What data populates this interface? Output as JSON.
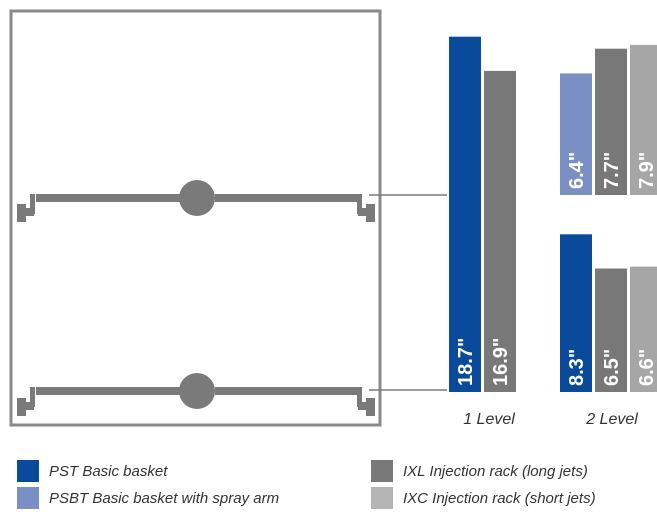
{
  "colors": {
    "frame": "#8a8a8a",
    "rack": "#7a7a7a",
    "leader": "#7a7a7a",
    "bar_text": "#ffffff",
    "axis_text": "#333333"
  },
  "chart_data": {
    "type": "bar",
    "categories": [
      "1 Level",
      "2 Level"
    ],
    "value_unit": "\"",
    "series": [
      {
        "name": "PST Basic basket",
        "color": "#0a4a9a"
      },
      {
        "name": "PSBT Basic basket with spray arm",
        "color": "#7a8fc4"
      },
      {
        "name": "IXL Injection rack (long jets)",
        "color": "#787878"
      },
      {
        "name": "IXC Injection rack (short jets)",
        "color": "#a6a6a6"
      }
    ],
    "groups": [
      {
        "category": "1 Level",
        "bars": [
          {
            "series": "PST Basic basket",
            "value": 18.7,
            "label": "18.7\""
          },
          {
            "series": "IXL Injection rack (long jets)",
            "value": 16.9,
            "label": "16.9\""
          }
        ]
      },
      {
        "category": "2 Level",
        "tiers": [
          {
            "tier": "upper",
            "bars": [
              {
                "series": "PSBT Basic basket with spray arm",
                "value": 6.4,
                "label": "6.4\""
              },
              {
                "series": "IXL Injection rack (long jets)",
                "value": 7.7,
                "label": "7.7\""
              },
              {
                "series": "IXC Injection rack (short jets)",
                "value": 7.9,
                "label": "7.9\""
              }
            ]
          },
          {
            "tier": "lower",
            "bars": [
              {
                "series": "PST Basic basket",
                "value": 8.3,
                "label": "8.3\""
              },
              {
                "series": "IXL Injection rack (long jets)",
                "value": 6.5,
                "label": "6.5\""
              },
              {
                "series": "IXC Injection rack (short jets)",
                "value": 6.6,
                "label": "6.6\""
              }
            ]
          }
        ]
      }
    ],
    "legend": {
      "placement": "bottom",
      "items": [
        {
          "label": "PST Basic basket",
          "color": "#0a4a9a"
        },
        {
          "label": "IXL Injection rack (long jets)",
          "color": "#787878"
        },
        {
          "label": "PSBT Basic basket with spray arm",
          "color": "#7a8fc4"
        },
        {
          "label": "IXC Injection rack (short jets)",
          "color": "#b4b4b4"
        }
      ]
    }
  }
}
